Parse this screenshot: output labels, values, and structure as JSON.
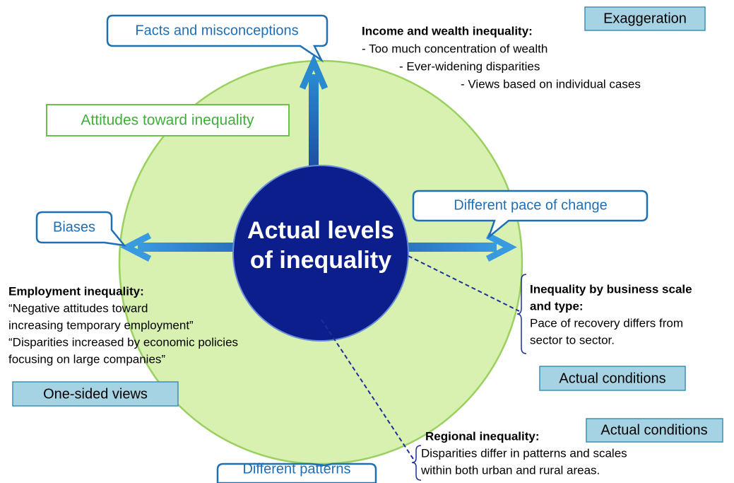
{
  "center": {
    "lines": [
      "Actual levels",
      "of inequality"
    ]
  },
  "callouts": {
    "facts": "Facts and misconceptions",
    "biases": "Biases",
    "pace": "Different pace of change",
    "patterns": "Different patterns"
  },
  "attitudes": "Attitudes toward inequality",
  "tags": {
    "exaggeration": "Exaggeration",
    "actual_1": "Actual conditions",
    "one_sided": "One-sided views",
    "actual_2": "Actual conditions"
  },
  "income": {
    "heading": "Income and wealth inequality:",
    "lines": [
      "- Too much concentration of wealth",
      "- Ever-widening disparities",
      "- Views based on individual cases"
    ]
  },
  "employment": {
    "heading": "Employment inequality:",
    "lines": [
      "“Negative attitudes toward",
      "increasing temporary employment”",
      "“Disparities increased by economic policies",
      "focusing on large companies”"
    ]
  },
  "business": {
    "heading": [
      "Inequality by business scale",
      "and type:"
    ],
    "lines": [
      "Pace of recovery differs from",
      "sector to sector."
    ]
  },
  "regional": {
    "heading": "Regional inequality:",
    "lines": [
      "Disparities differ in patterns and scales",
      "within both urban and rural areas."
    ]
  }
}
